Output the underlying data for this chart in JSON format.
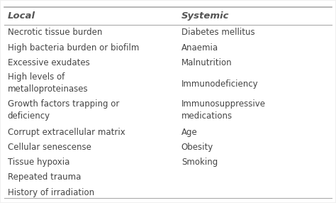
{
  "header_local": "Local",
  "header_systemic": "Systemic",
  "local_items": [
    "Necrotic tissue burden",
    "High bacteria burden or biofilm",
    "Excessive exudates",
    "High levels of\nmetalloproteinases",
    "Growth factors trapping or\ndeficiency",
    "Corrupt extracellular matrix",
    "Cellular senescense",
    "Tissue hypoxia",
    "Repeated trauma",
    "History of irradiation"
  ],
  "systemic_items": [
    "Diabetes mellitus",
    "Anaemia",
    "Malnutrition",
    "Immunodeficiency",
    "Immunosuppressive\nmedications",
    "Age",
    "Obesity",
    "Smoking",
    "",
    ""
  ],
  "bg_color": "#f0f0f0",
  "table_bg": "#ffffff",
  "header_color": "#555555",
  "text_color": "#444444",
  "line_color": "#aaaaaa",
  "font_size": 8.5,
  "header_font_size": 9.5,
  "col_split": 0.52
}
